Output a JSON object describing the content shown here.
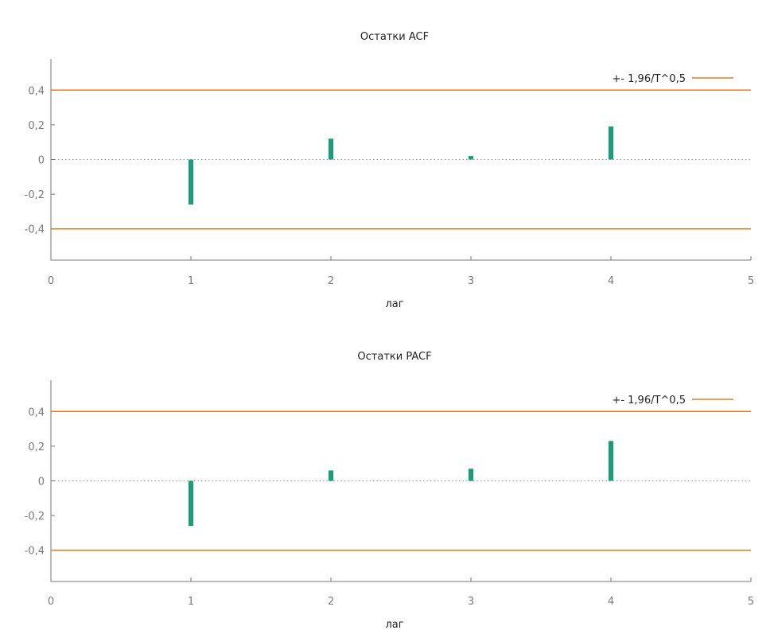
{
  "colors": {
    "bar": "#1a9e77",
    "band": "#e07b22",
    "axis": "#7a7a7a",
    "zero_line": "#999999"
  },
  "chart_data": [
    {
      "type": "bar",
      "title": "Остатки ACF",
      "xlabel": "лаг",
      "ylabel": "",
      "xlim": [
        0,
        5
      ],
      "ylim": [
        -0.58,
        0.58
      ],
      "x_ticks": [
        "0",
        "1",
        "2",
        "3",
        "4",
        "5"
      ],
      "y_ticks": [
        "0,4",
        "0,2",
        "0",
        "-0,2",
        "-0,4"
      ],
      "y_tick_values": [
        0.4,
        0.2,
        0,
        -0.2,
        -0.4
      ],
      "x": [
        1,
        2,
        3,
        4
      ],
      "values": [
        -0.26,
        0.12,
        0.02,
        0.19
      ],
      "band": {
        "label": "+- 1,96/T^0,5",
        "value": 0.4
      },
      "legend_position": "top-right",
      "grid": false
    },
    {
      "type": "bar",
      "title": "Остатки PACF",
      "xlabel": "лаг",
      "ylabel": "",
      "xlim": [
        0,
        5
      ],
      "ylim": [
        -0.58,
        0.58
      ],
      "x_ticks": [
        "0",
        "1",
        "2",
        "3",
        "4",
        "5"
      ],
      "y_ticks": [
        "0,4",
        "0,2",
        "0",
        "-0,2",
        "-0,4"
      ],
      "y_tick_values": [
        0.4,
        0.2,
        0,
        -0.2,
        -0.4
      ],
      "x": [
        1,
        2,
        3,
        4
      ],
      "values": [
        -0.26,
        0.06,
        0.07,
        0.23
      ],
      "band": {
        "label": "+- 1,96/T^0,5",
        "value": 0.4
      },
      "legend_position": "top-right",
      "grid": false
    }
  ]
}
